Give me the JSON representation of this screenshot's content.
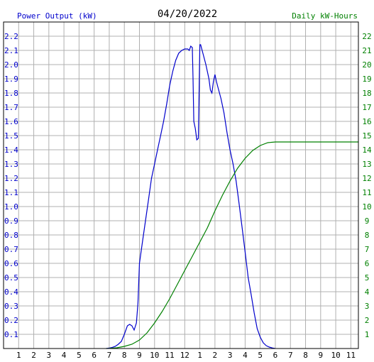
{
  "chart_data": {
    "type": "line",
    "title": "04/20/2022",
    "left_axis_label": "Power Output (kW)",
    "right_axis_label": "Daily kW-Hours",
    "x_tick_labels": [
      "1",
      "2",
      "3",
      "4",
      "5",
      "6",
      "7",
      "8",
      "9",
      "10",
      "11",
      "12",
      "1",
      "2",
      "3",
      "4",
      "5",
      "6",
      "7",
      "8",
      "9",
      "10",
      "11"
    ],
    "xlim": [
      0,
      23.5
    ],
    "ylim_left": [
      0,
      2.3
    ],
    "ylim_right": [
      0,
      23
    ],
    "left_ticks": [
      "0.1",
      "0.2",
      "0.3",
      "0.4",
      "0.5",
      "0.6",
      "0.7",
      "0.8",
      "0.9",
      "1.0",
      "1.1",
      "1.2",
      "1.3",
      "1.4",
      "1.5",
      "1.6",
      "1.7",
      "1.8",
      "1.9",
      "2.0",
      "2.1",
      "2.2"
    ],
    "right_ticks": [
      "1",
      "2",
      "3",
      "4",
      "5",
      "6",
      "7",
      "8",
      "9",
      "10",
      "11",
      "12",
      "13",
      "14",
      "15",
      "16",
      "17",
      "18",
      "19",
      "20",
      "21",
      "22"
    ],
    "grid": true,
    "colors": {
      "power": "#0000cc",
      "energy": "#008000",
      "grid": "#b0b0b0",
      "frame": "#000000",
      "title": "#000000"
    },
    "series": [
      {
        "name": "Power Output (kW)",
        "axis": "left",
        "points": [
          [
            6.8,
            0
          ],
          [
            7.0,
            0.003
          ],
          [
            7.2,
            0.008
          ],
          [
            7.4,
            0.015
          ],
          [
            7.6,
            0.03
          ],
          [
            7.8,
            0.05
          ],
          [
            8.0,
            0.1
          ],
          [
            8.2,
            0.16
          ],
          [
            8.35,
            0.17
          ],
          [
            8.5,
            0.16
          ],
          [
            8.65,
            0.13
          ],
          [
            8.8,
            0.18
          ],
          [
            8.9,
            0.32
          ],
          [
            9.0,
            0.6
          ],
          [
            9.2,
            0.75
          ],
          [
            9.4,
            0.9
          ],
          [
            9.6,
            1.05
          ],
          [
            9.8,
            1.2
          ],
          [
            10.0,
            1.3
          ],
          [
            10.2,
            1.4
          ],
          [
            10.4,
            1.5
          ],
          [
            10.6,
            1.6
          ],
          [
            10.8,
            1.72
          ],
          [
            11.0,
            1.85
          ],
          [
            11.2,
            1.95
          ],
          [
            11.4,
            2.03
          ],
          [
            11.6,
            2.08
          ],
          [
            11.8,
            2.1
          ],
          [
            12.0,
            2.11
          ],
          [
            12.2,
            2.11
          ],
          [
            12.3,
            2.1
          ],
          [
            12.4,
            2.13
          ],
          [
            12.5,
            2.12
          ],
          [
            12.55,
            1.9
          ],
          [
            12.6,
            1.6
          ],
          [
            12.7,
            1.55
          ],
          [
            12.8,
            1.47
          ],
          [
            12.9,
            1.48
          ],
          [
            13.0,
            2.14
          ],
          [
            13.05,
            2.14
          ],
          [
            13.2,
            2.08
          ],
          [
            13.4,
            2.0
          ],
          [
            13.6,
            1.9
          ],
          [
            13.7,
            1.82
          ],
          [
            13.8,
            1.8
          ],
          [
            13.9,
            1.88
          ],
          [
            14.0,
            1.93
          ],
          [
            14.1,
            1.88
          ],
          [
            14.2,
            1.84
          ],
          [
            14.4,
            1.76
          ],
          [
            14.6,
            1.66
          ],
          [
            14.8,
            1.52
          ],
          [
            15.0,
            1.4
          ],
          [
            15.2,
            1.3
          ],
          [
            15.4,
            1.18
          ],
          [
            15.6,
            1.02
          ],
          [
            15.8,
            0.85
          ],
          [
            16.0,
            0.68
          ],
          [
            16.2,
            0.5
          ],
          [
            16.4,
            0.38
          ],
          [
            16.6,
            0.25
          ],
          [
            16.8,
            0.14
          ],
          [
            17.0,
            0.08
          ],
          [
            17.2,
            0.04
          ],
          [
            17.4,
            0.02
          ],
          [
            17.6,
            0.01
          ],
          [
            17.8,
            0.004
          ],
          [
            18.0,
            0
          ]
        ]
      },
      {
        "name": "Daily kW-Hours",
        "axis": "right",
        "points": [
          [
            6.8,
            0
          ],
          [
            7.0,
            0.01
          ],
          [
            7.5,
            0.05
          ],
          [
            8.0,
            0.15
          ],
          [
            8.5,
            0.3
          ],
          [
            9.0,
            0.6
          ],
          [
            9.5,
            1.1
          ],
          [
            10.0,
            1.8
          ],
          [
            10.5,
            2.6
          ],
          [
            11.0,
            3.5
          ],
          [
            11.5,
            4.5
          ],
          [
            12.0,
            5.5
          ],
          [
            12.5,
            6.5
          ],
          [
            13.0,
            7.5
          ],
          [
            13.5,
            8.5
          ],
          [
            14.0,
            9.7
          ],
          [
            14.5,
            10.8
          ],
          [
            15.0,
            11.8
          ],
          [
            15.5,
            12.7
          ],
          [
            16.0,
            13.4
          ],
          [
            16.5,
            13.95
          ],
          [
            17.0,
            14.3
          ],
          [
            17.5,
            14.5
          ],
          [
            18.0,
            14.55
          ],
          [
            18.5,
            14.55
          ],
          [
            23.5,
            14.55
          ]
        ]
      }
    ]
  }
}
